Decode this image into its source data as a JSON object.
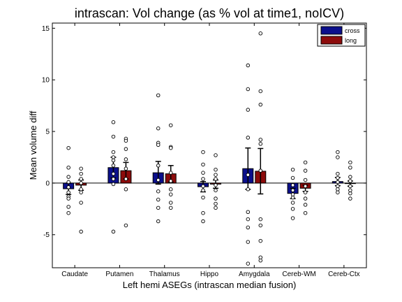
{
  "chart_data": {
    "type": "bar",
    "title": "intrascan: Vol change (as % vol at time1, noICV)",
    "xlabel": "Left hemi ASEGs (intrascan median fusion)",
    "ylabel": "Mean volume diff",
    "ylim": [
      -8.2,
      15.5
    ],
    "yticks": [
      -5,
      0,
      5,
      10,
      15
    ],
    "grid": false,
    "legend_position": "top-right",
    "categories": [
      "Caudate",
      "Putamen",
      "Thalamus",
      "Hippo",
      "Amygdala",
      "Cereb-WM",
      "Cereb-Ctx"
    ],
    "series": [
      {
        "name": "cross",
        "color": "#0b0f8c",
        "values": [
          -0.55,
          1.5,
          1.0,
          -0.35,
          1.4,
          -1.0,
          0.15
        ],
        "errors": [
          0.55,
          1.0,
          1.1,
          0.5,
          2.0,
          0.5,
          0.4
        ],
        "points": [
          [
            3.4,
            1.5,
            0.6,
            0.1,
            -0.4,
            -0.9,
            -1.3,
            -1.5,
            -2.3,
            -2.9
          ],
          [
            5.9,
            4.5,
            3.0,
            2.5,
            2.2,
            1.7,
            0.9,
            0.4,
            -0.1,
            -4.7
          ],
          [
            8.5,
            5.3,
            3.9,
            3.7,
            1.7,
            0.3,
            -0.8,
            -1.6,
            -2.4,
            -3.7
          ],
          [
            3.0,
            1.8,
            1.0,
            0.4,
            -0.3,
            -0.7,
            -1.4,
            -2.9,
            -3.7
          ],
          [
            11.4,
            9.1,
            7.1,
            4.4,
            0.8,
            -0.6,
            -2.8,
            -3.5,
            -4.3,
            -5.7,
            -7.8
          ],
          [
            1.3,
            0.5,
            -0.2,
            -0.7,
            -1.1,
            -1.4,
            -1.9,
            -2.5,
            -3.4
          ],
          [
            3.0,
            2.5,
            0.9,
            0.5,
            0.1,
            -0.3,
            -0.6,
            -0.9
          ]
        ]
      },
      {
        "name": "long",
        "color": "#8c0b0b",
        "values": [
          -0.2,
          1.2,
          0.9,
          -0.1,
          1.15,
          -0.5,
          -0.05
        ],
        "errors": [
          0.5,
          0.8,
          0.8,
          0.4,
          2.2,
          0.3,
          0.25
        ],
        "points": [
          [
            1.4,
            0.9,
            0.4,
            0.0,
            -0.6,
            -0.9,
            -1.9,
            -4.7
          ],
          [
            4.3,
            4.1,
            3.3,
            2.3,
            1.4,
            0.4,
            -0.6,
            -4.1
          ],
          [
            5.6,
            3.5,
            3.4,
            1.0,
            0.2,
            -0.6,
            -1.1,
            -1.9,
            -2.4
          ],
          [
            2.7,
            1.3,
            0.8,
            0.4,
            -0.2,
            -0.7,
            -1.5,
            -2.0,
            -2.4
          ],
          [
            14.5,
            8.9,
            7.6,
            4.2,
            3.8,
            1.2,
            -3.5,
            -4.1,
            -5.6,
            -7.2,
            -7.5
          ],
          [
            2.0,
            1.2,
            0.3,
            -0.3,
            -0.9,
            -1.5,
            -2.1,
            -2.9
          ],
          [
            2.0,
            1.5,
            0.6,
            0.2,
            -0.3,
            -0.7,
            -1.0,
            -1.5
          ]
        ]
      }
    ]
  }
}
